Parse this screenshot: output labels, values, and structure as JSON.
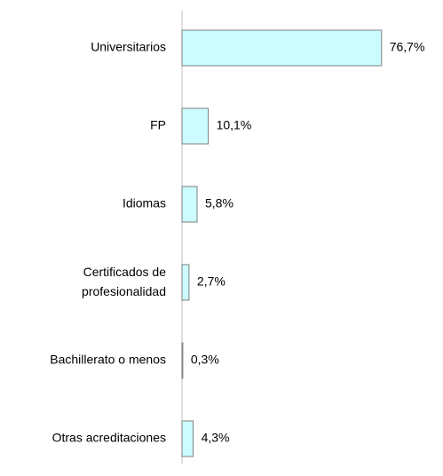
{
  "chart_data": {
    "type": "bar",
    "orientation": "horizontal",
    "categories": [
      "Universitarios",
      "FP",
      "Idiomas",
      "Certificados de profesionalidad",
      "Bachillerato o menos",
      "Otras acreditaciones"
    ],
    "values": [
      76.7,
      10.1,
      5.8,
      2.7,
      0.3,
      4.3
    ],
    "value_labels": [
      "76,7%",
      "10,1%",
      "5,8%",
      "2,7%",
      "0,3%",
      "4,3%"
    ],
    "color": "#ccfcff"
  }
}
